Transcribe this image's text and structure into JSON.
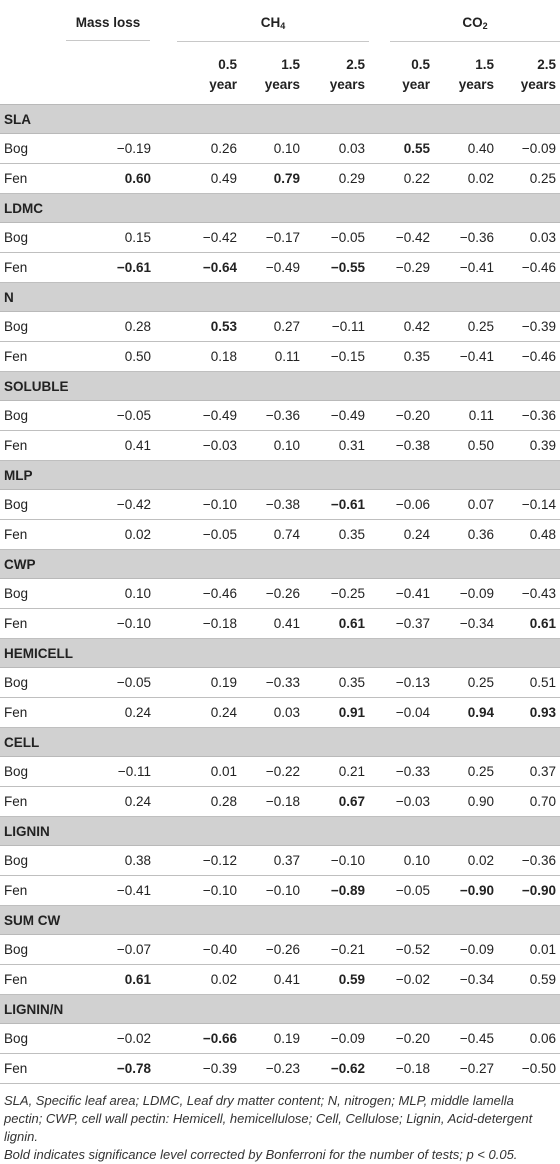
{
  "header": {
    "mass_loss": "Mass loss",
    "ch4_main": "CH",
    "ch4_sub": "4",
    "co2_main": "CO",
    "co2_sub": "2",
    "subcols": [
      {
        "line1": "0.5",
        "line2": "year"
      },
      {
        "line1": "1.5",
        "line2": "years"
      },
      {
        "line1": "2.5",
        "line2": "years"
      },
      {
        "line1": "0.5",
        "line2": "year"
      },
      {
        "line1": "1.5",
        "line2": "years"
      },
      {
        "line1": "2.5",
        "line2": "years"
      }
    ]
  },
  "groups": [
    {
      "name": "SLA",
      "rows": [
        {
          "label": "Bog",
          "cells": [
            "−0.19",
            "0.26",
            "0.10",
            "0.03",
            "0.55",
            "0.40",
            "−0.09"
          ],
          "bold": [
            false,
            false,
            false,
            false,
            true,
            false,
            false
          ]
        },
        {
          "label": "Fen",
          "cells": [
            "0.60",
            "0.49",
            "0.79",
            "0.29",
            "0.22",
            "0.02",
            "0.25"
          ],
          "bold": [
            true,
            false,
            true,
            false,
            false,
            false,
            false
          ]
        }
      ]
    },
    {
      "name": "LDMC",
      "rows": [
        {
          "label": "Bog",
          "cells": [
            "0.15",
            "−0.42",
            "−0.17",
            "−0.05",
            "−0.42",
            "−0.36",
            "0.03"
          ],
          "bold": [
            false,
            false,
            false,
            false,
            false,
            false,
            false
          ]
        },
        {
          "label": "Fen",
          "cells": [
            "−0.61",
            "−0.64",
            "−0.49",
            "−0.55",
            "−0.29",
            "−0.41",
            "−0.46"
          ],
          "bold": [
            true,
            true,
            false,
            true,
            false,
            false,
            false
          ]
        }
      ]
    },
    {
      "name": "N",
      "rows": [
        {
          "label": "Bog",
          "cells": [
            "0.28",
            "0.53",
            "0.27",
            "−0.11",
            "0.42",
            "0.25",
            "−0.39"
          ],
          "bold": [
            false,
            true,
            false,
            false,
            false,
            false,
            false
          ]
        },
        {
          "label": "Fen",
          "cells": [
            "0.50",
            "0.18",
            "0.11",
            "−0.15",
            "0.35",
            "−0.41",
            "−0.46"
          ],
          "bold": [
            false,
            false,
            false,
            false,
            false,
            false,
            false
          ]
        }
      ]
    },
    {
      "name": "SOLUBLE",
      "rows": [
        {
          "label": "Bog",
          "cells": [
            "−0.05",
            "−0.49",
            "−0.36",
            "−0.49",
            "−0.20",
            "0.11",
            "−0.36"
          ],
          "bold": [
            false,
            false,
            false,
            false,
            false,
            false,
            false
          ]
        },
        {
          "label": "Fen",
          "cells": [
            "0.41",
            "−0.03",
            "0.10",
            "0.31",
            "−0.38",
            "0.50",
            "0.39"
          ],
          "bold": [
            false,
            false,
            false,
            false,
            false,
            false,
            false
          ]
        }
      ]
    },
    {
      "name": "MLP",
      "rows": [
        {
          "label": "Bog",
          "cells": [
            "−0.42",
            "−0.10",
            "−0.38",
            "−0.61",
            "−0.06",
            "0.07",
            "−0.14"
          ],
          "bold": [
            false,
            false,
            false,
            true,
            false,
            false,
            false
          ]
        },
        {
          "label": "Fen",
          "cells": [
            "0.02",
            "−0.05",
            "0.74",
            "0.35",
            "0.24",
            "0.36",
            "0.48"
          ],
          "bold": [
            false,
            false,
            false,
            false,
            false,
            false,
            false
          ]
        }
      ]
    },
    {
      "name": "CWP",
      "rows": [
        {
          "label": "Bog",
          "cells": [
            "0.10",
            "−0.46",
            "−0.26",
            "−0.25",
            "−0.41",
            "−0.09",
            "−0.43"
          ],
          "bold": [
            false,
            false,
            false,
            false,
            false,
            false,
            false
          ]
        },
        {
          "label": "Fen",
          "cells": [
            "−0.10",
            "−0.18",
            "0.41",
            "0.61",
            "−0.37",
            "−0.34",
            "0.61"
          ],
          "bold": [
            false,
            false,
            false,
            true,
            false,
            false,
            true
          ]
        }
      ]
    },
    {
      "name": "HEMICELL",
      "rows": [
        {
          "label": "Bog",
          "cells": [
            "−0.05",
            "0.19",
            "−0.33",
            "0.35",
            "−0.13",
            "0.25",
            "0.51"
          ],
          "bold": [
            false,
            false,
            false,
            false,
            false,
            false,
            false
          ]
        },
        {
          "label": "Fen",
          "cells": [
            "0.24",
            "0.24",
            "0.03",
            "0.91",
            "−0.04",
            "0.94",
            "0.93"
          ],
          "bold": [
            false,
            false,
            false,
            true,
            false,
            true,
            true
          ]
        }
      ]
    },
    {
      "name": "CELL",
      "rows": [
        {
          "label": "Bog",
          "cells": [
            "−0.11",
            "0.01",
            "−0.22",
            "0.21",
            "−0.33",
            "0.25",
            "0.37"
          ],
          "bold": [
            false,
            false,
            false,
            false,
            false,
            false,
            false
          ]
        },
        {
          "label": "Fen",
          "cells": [
            "0.24",
            "0.28",
            "−0.18",
            "0.67",
            "−0.03",
            "0.90",
            "0.70"
          ],
          "bold": [
            false,
            false,
            false,
            true,
            false,
            false,
            false
          ]
        }
      ]
    },
    {
      "name": "LIGNIN",
      "rows": [
        {
          "label": "Bog",
          "cells": [
            "0.38",
            "−0.12",
            "0.37",
            "−0.10",
            "0.10",
            "0.02",
            "−0.36"
          ],
          "bold": [
            false,
            false,
            false,
            false,
            false,
            false,
            false
          ]
        },
        {
          "label": "Fen",
          "cells": [
            "−0.41",
            "−0.10",
            "−0.10",
            "−0.89",
            "−0.05",
            "−0.90",
            "−0.90"
          ],
          "bold": [
            false,
            false,
            false,
            true,
            false,
            true,
            true
          ]
        }
      ]
    },
    {
      "name": "SUM CW",
      "rows": [
        {
          "label": "Bog",
          "cells": [
            "−0.07",
            "−0.40",
            "−0.26",
            "−0.21",
            "−0.52",
            "−0.09",
            "0.01"
          ],
          "bold": [
            false,
            false,
            false,
            false,
            false,
            false,
            false
          ]
        },
        {
          "label": "Fen",
          "cells": [
            "0.61",
            "0.02",
            "0.41",
            "0.59",
            "−0.02",
            "−0.34",
            "0.59"
          ],
          "bold": [
            true,
            false,
            false,
            true,
            false,
            false,
            false
          ]
        }
      ]
    },
    {
      "name": "LIGNIN/N",
      "rows": [
        {
          "label": "Bog",
          "cells": [
            "−0.02",
            "−0.66",
            "0.19",
            "−0.09",
            "−0.20",
            "−0.45",
            "0.06"
          ],
          "bold": [
            false,
            true,
            false,
            false,
            false,
            false,
            false
          ]
        },
        {
          "label": "Fen",
          "cells": [
            "−0.78",
            "−0.39",
            "−0.23",
            "−0.62",
            "−0.18",
            "−0.27",
            "−0.50"
          ],
          "bold": [
            true,
            false,
            false,
            true,
            false,
            false,
            false
          ]
        }
      ]
    }
  ],
  "footnote": {
    "line1": "SLA, Specific leaf area; LDMC, Leaf dry matter content; N, nitrogen; MLP, middle lamella pectin; CWP, cell wall pectin: Hemicell, hemicellulose; Cell, Cellulose; Lignin, Acid-detergent lignin.",
    "line2": "Bold indicates significance level corrected by Bonferroni for the number of tests; p < 0.05."
  }
}
